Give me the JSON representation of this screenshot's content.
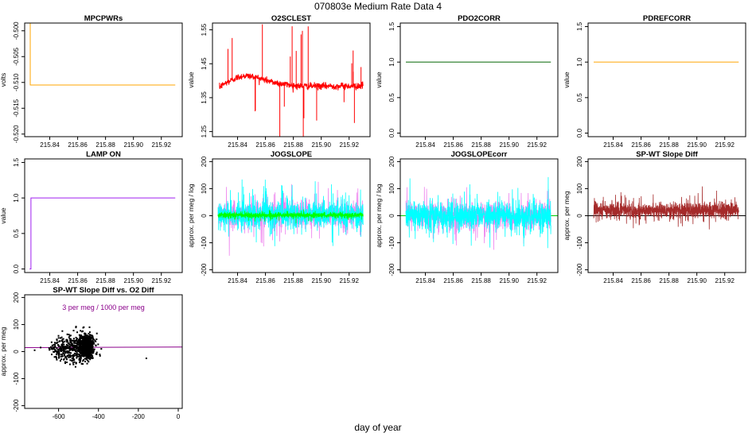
{
  "page": {
    "title": "070803e   Medium Rate Data 4",
    "xlabel": "day of year"
  },
  "chart_data": [
    {
      "type": "line",
      "title": "MPCPWRs",
      "ylabel": "volts",
      "xlim": [
        215.822,
        215.935
      ],
      "ylim": [
        -0.5205,
        -0.4985
      ],
      "xticks": [
        215.84,
        215.86,
        215.88,
        215.9,
        215.92
      ],
      "xtick_labels": [
        "215.84",
        "215.86",
        "215.88",
        "215.90",
        "215.92"
      ],
      "yticks": [
        -0.52,
        -0.515,
        -0.51,
        -0.505,
        -0.5
      ],
      "ytick_labels": [
        "-0.520",
        "-0.515",
        "-0.510",
        "-0.505",
        "-0.500"
      ],
      "series": [
        {
          "color": "#FFA500",
          "x": [
            215.826,
            215.826,
            215.93
          ],
          "y": [
            -0.4985,
            -0.5105,
            -0.5105
          ]
        }
      ]
    },
    {
      "type": "line",
      "title": "O2SCLEST",
      "ylabel": "value",
      "xlim": [
        215.822,
        215.935
      ],
      "ylim": [
        1.235,
        1.57
      ],
      "xticks": [
        215.84,
        215.86,
        215.88,
        215.9,
        215.92
      ],
      "xtick_labels": [
        "215.84",
        "215.86",
        "215.88",
        "215.90",
        "215.92"
      ],
      "yticks": [
        1.25,
        1.35,
        1.45,
        1.55
      ],
      "ytick_labels": [
        "1.25",
        "1.35",
        "1.45",
        "1.55"
      ],
      "series": [
        {
          "color": "#FF0000",
          "noise": 0.005,
          "spike_count": 22,
          "x": [
            215.827,
            215.83,
            215.835,
            215.84,
            215.845,
            215.85,
            215.855,
            215.86,
            215.865,
            215.87,
            215.875,
            215.88,
            215.885,
            215.89,
            215.895,
            215.9,
            215.905,
            215.91,
            215.915,
            215.92,
            215.925,
            215.93
          ],
          "y": [
            1.38,
            1.39,
            1.4,
            1.41,
            1.415,
            1.413,
            1.408,
            1.402,
            1.396,
            1.392,
            1.389,
            1.386,
            1.384,
            1.384,
            1.384,
            1.384,
            1.384,
            1.384,
            1.384,
            1.384,
            1.384,
            1.386
          ]
        }
      ]
    },
    {
      "type": "line",
      "title": "PDO2CORR",
      "ylabel": "value",
      "xlim": [
        215.822,
        215.935
      ],
      "ylim": [
        -0.05,
        1.55
      ],
      "xticks": [
        215.84,
        215.86,
        215.88,
        215.9,
        215.92
      ],
      "xtick_labels": [
        "215.84",
        "215.86",
        "215.88",
        "215.90",
        "215.92"
      ],
      "yticks": [
        0,
        0.5,
        1,
        1.5
      ],
      "ytick_labels": [
        "0.0",
        "0.5",
        "1.0",
        "1.5"
      ],
      "series": [
        {
          "color": "#006400",
          "x": [
            215.826,
            215.93
          ],
          "y": [
            1,
            1
          ]
        }
      ]
    },
    {
      "type": "line",
      "title": "PDREFCORR",
      "ylabel": "value",
      "xlim": [
        215.822,
        215.935
      ],
      "ylim": [
        -0.05,
        1.55
      ],
      "xticks": [
        215.84,
        215.86,
        215.88,
        215.9,
        215.92
      ],
      "xtick_labels": [
        "215.84",
        "215.86",
        "215.88",
        "215.90",
        "215.92"
      ],
      "yticks": [
        0,
        0.5,
        1,
        1.5
      ],
      "ytick_labels": [
        "0.0",
        "0.5",
        "1.0",
        "1.5"
      ],
      "series": [
        {
          "color": "#FFA500",
          "x": [
            215.826,
            215.93
          ],
          "y": [
            1,
            1
          ]
        }
      ]
    },
    {
      "type": "line",
      "title": "LAMP ON",
      "ylabel": "value",
      "xlim": [
        215.822,
        215.935
      ],
      "ylim": [
        -0.05,
        1.55
      ],
      "xticks": [
        215.84,
        215.86,
        215.88,
        215.9,
        215.92
      ],
      "xtick_labels": [
        "215.84",
        "215.86",
        "215.88",
        "215.90",
        "215.92"
      ],
      "yticks": [
        0,
        0.5,
        1,
        1.5
      ],
      "ytick_labels": [
        "0.0",
        "0.5",
        "1.0",
        "1.5"
      ],
      "series": [
        {
          "color": "#A020F0",
          "x": [
            215.8255,
            215.8255,
            215.8265,
            215.8265,
            215.93
          ],
          "y": [
            0,
            0,
            0,
            1,
            1
          ]
        }
      ]
    },
    {
      "type": "line",
      "title": "JOGSLOPE",
      "ylabel": "approx. per meg / log",
      "xlim": [
        215.822,
        215.935
      ],
      "ylim": [
        -210,
        210
      ],
      "xticks": [
        215.84,
        215.86,
        215.88,
        215.9,
        215.92
      ],
      "xtick_labels": [
        "215.84",
        "215.86",
        "215.88",
        "215.90",
        "215.92"
      ],
      "yticks": [
        -200,
        -100,
        0,
        100,
        200
      ],
      "ytick_labels": [
        "-200",
        "-100",
        "0",
        "100",
        "200"
      ],
      "series": [
        {
          "name": "",
          "color": "#EE82EE",
          "x_range": [
            215.826,
            215.93
          ],
          "center": 5,
          "spread": 45,
          "count": 900
        },
        {
          "name": "",
          "color": "#00FFFF",
          "x_range": [
            215.826,
            215.93
          ],
          "center": 5,
          "spread": 45,
          "count": 1100
        },
        {
          "name": "",
          "color": "#00FF00",
          "x_range": [
            215.826,
            215.93
          ],
          "center": 2,
          "spread": 9,
          "count": 1400
        }
      ]
    },
    {
      "type": "line",
      "title": "JOGSLOPEcorr",
      "ylabel": "approx. per meg / log",
      "xlim": [
        215.822,
        215.935
      ],
      "ylim": [
        -210,
        210
      ],
      "xticks": [
        215.84,
        215.86,
        215.88,
        215.9,
        215.92
      ],
      "xtick_labels": [
        "215.84",
        "215.86",
        "215.88",
        "215.90",
        "215.92"
      ],
      "yticks": [
        -200,
        -100,
        0,
        100,
        200
      ],
      "ytick_labels": [
        "-200",
        "-100",
        "0",
        "100",
        "200"
      ],
      "hline": {
        "y": 0,
        "color": "#00CC00"
      },
      "series": [
        {
          "name": "",
          "color": "#EE82EE",
          "x_range": [
            215.826,
            215.93
          ],
          "center": 0,
          "spread": 45,
          "count": 900
        },
        {
          "name": "",
          "color": "#00FFFF",
          "x_range": [
            215.826,
            215.93
          ],
          "center": 0,
          "spread": 45,
          "count": 1100
        }
      ]
    },
    {
      "type": "line",
      "title": "SP-WT Slope Diff",
      "ylabel": "approx. per meg",
      "xlim": [
        215.822,
        215.935
      ],
      "ylim": [
        -210,
        210
      ],
      "xticks": [
        215.84,
        215.86,
        215.88,
        215.9,
        215.92
      ],
      "xtick_labels": [
        "215.84",
        "215.86",
        "215.88",
        "215.90",
        "215.92"
      ],
      "yticks": [
        -200,
        -100,
        0,
        100,
        200
      ],
      "ytick_labels": [
        "-200",
        "-100",
        "0",
        "100",
        "200"
      ],
      "hline": {
        "y": 0,
        "color": "#000000"
      },
      "series": [
        {
          "name": "",
          "color": "#A52A2A",
          "x_range": [
            215.826,
            215.93
          ],
          "center": 20,
          "spread": 25,
          "count": 1400
        }
      ]
    },
    {
      "type": "scatter",
      "title": "SP-WT Slope Diff vs. O2 Diff",
      "ylabel": "approx. per meg",
      "xlim": [
        -770,
        20
      ],
      "ylim": [
        -210,
        210
      ],
      "xticks": [
        -600,
        -400,
        -200,
        0
      ],
      "xtick_labels": [
        "-600",
        "-400",
        "-200",
        "0"
      ],
      "yticks": [
        -200,
        -100,
        0,
        100,
        200
      ],
      "ytick_labels": [
        "-200",
        "-100",
        "0",
        "100",
        "200"
      ],
      "annotation": {
        "text": "3 per meg / 1000 per meg",
        "color": "#8B008B"
      },
      "fit_line": {
        "color": "#8B008B",
        "slope": 0.003,
        "intercept": 17
      },
      "clusters": [
        {
          "cx": -460,
          "cy": 20,
          "sx": 18,
          "sy": 22,
          "count": 700
        },
        {
          "cx": -520,
          "cy": 10,
          "sx": 40,
          "sy": 25,
          "count": 350
        },
        {
          "cx": -600,
          "cy": 10,
          "sx": 25,
          "sy": 20,
          "count": 80
        }
      ],
      "outliers": [
        [
          -160,
          -25
        ],
        [
          -690,
          15
        ],
        [
          -720,
          5
        ]
      ]
    }
  ]
}
